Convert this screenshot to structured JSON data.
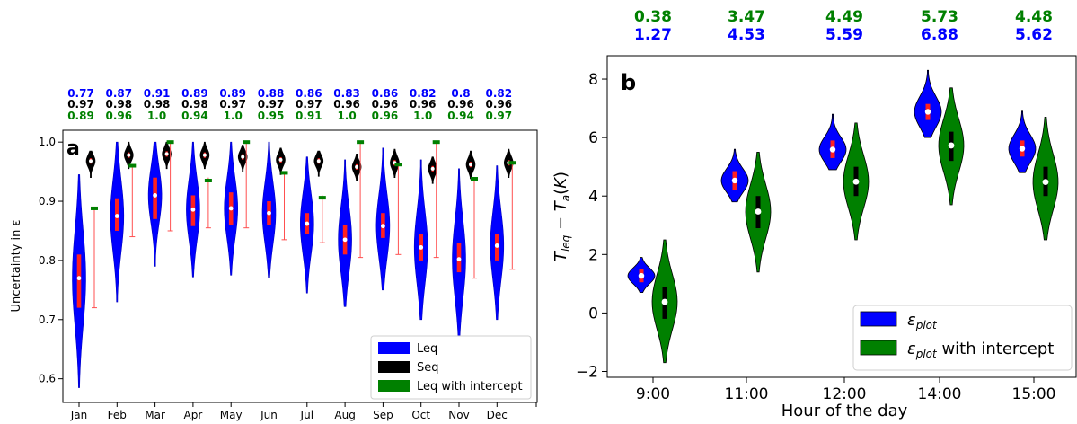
{
  "chart_data": [
    {
      "type": "violin",
      "panel_label": "a",
      "ylabel": "Uncertainty in ε",
      "ylim": [
        0.56,
        1.02
      ],
      "yticks": [
        "0.6",
        "0.7",
        "0.8",
        "0.9",
        "1.0"
      ],
      "categories": [
        "Jan",
        "Feb",
        "Mar",
        "Apr",
        "May",
        "Jun",
        "Jul",
        "Aug",
        "Sep",
        "Oct",
        "Nov",
        "Dec"
      ],
      "series": [
        {
          "name": "Leq",
          "color": "#0000ff",
          "medians": [
            0.77,
            0.875,
            0.91,
            0.886,
            0.888,
            0.88,
            0.862,
            0.835,
            0.858,
            0.822,
            0.802,
            0.825
          ],
          "q1": [
            0.72,
            0.85,
            0.87,
            0.858,
            0.86,
            0.86,
            0.845,
            0.81,
            0.838,
            0.8,
            0.78,
            0.8
          ],
          "q3": [
            0.81,
            0.905,
            0.94,
            0.91,
            0.915,
            0.9,
            0.88,
            0.86,
            0.88,
            0.845,
            0.83,
            0.845
          ],
          "min": [
            0.585,
            0.73,
            0.79,
            0.772,
            0.775,
            0.77,
            0.745,
            0.722,
            0.75,
            0.7,
            0.665,
            0.7
          ],
          "max": [
            0.945,
            1.0,
            1.0,
            1.0,
            1.0,
            1.0,
            0.975,
            0.97,
            0.99,
            0.97,
            0.955,
            0.96
          ]
        },
        {
          "name": "Seq",
          "color": "#000000",
          "medians": [
            0.968,
            0.978,
            0.98,
            0.978,
            0.975,
            0.97,
            0.968,
            0.958,
            0.965,
            0.955,
            0.962,
            0.965
          ],
          "min": [
            0.94,
            0.955,
            0.955,
            0.955,
            0.95,
            0.945,
            0.942,
            0.935,
            0.94,
            0.93,
            0.938,
            0.94
          ],
          "max": [
            0.985,
            1.0,
            1.0,
            1.0,
            0.995,
            0.99,
            0.985,
            0.98,
            0.988,
            0.975,
            0.985,
            0.988
          ]
        },
        {
          "name": "Leq with intercept",
          "color": "#008000",
          "medians": [
            0.888,
            0.96,
            1.0,
            0.935,
            1.0,
            0.948,
            0.906,
            1.0,
            0.962,
            1.0,
            0.938,
            0.965
          ],
          "min": [
            0.72,
            0.84,
            0.85,
            0.855,
            0.855,
            0.835,
            0.83,
            0.805,
            0.81,
            0.805,
            0.77,
            0.785
          ],
          "max": [
            0.89,
            0.962,
            1.0,
            0.94,
            1.0,
            0.95,
            0.91,
            1.0,
            0.965,
            1.0,
            0.94,
            0.967
          ]
        }
      ],
      "annotations": {
        "leq": [
          "0.77",
          "0.87",
          "0.91",
          "0.89",
          "0.89",
          "0.88",
          "0.86",
          "0.83",
          "0.86",
          "0.82",
          "0.8",
          "0.82"
        ],
        "seq": [
          "0.97",
          "0.98",
          "0.98",
          "0.98",
          "0.97",
          "0.97",
          "0.97",
          "0.96",
          "0.96",
          "0.96",
          "0.96",
          "0.96"
        ],
        "intercept": [
          "0.89",
          "0.96",
          "1.0",
          "0.94",
          "1.0",
          "0.95",
          "0.91",
          "1.0",
          "0.96",
          "1.0",
          "0.94",
          "0.97"
        ]
      },
      "legend": [
        "Leq",
        "Seq",
        "Leq with intercept"
      ],
      "legend_position": "lower-right"
    },
    {
      "type": "violin",
      "panel_label": "b",
      "ylabel": "T_leq − T_a (K)",
      "xlabel": "Hour of the day",
      "ylim": [
        -2.2,
        8.8
      ],
      "yticks": [
        "−2",
        "0",
        "2",
        "4",
        "6",
        "8"
      ],
      "categories": [
        "9:00",
        "11:00",
        "12:00",
        "14:00",
        "15:00"
      ],
      "series": [
        {
          "name": "ε_plot",
          "color": "#0000ff",
          "medians": [
            1.27,
            4.53,
            5.59,
            6.88,
            5.62
          ],
          "q1": [
            1.05,
            4.2,
            5.3,
            6.6,
            5.35
          ],
          "q3": [
            1.5,
            4.85,
            5.9,
            7.15,
            5.9
          ],
          "min": [
            0.7,
            3.8,
            4.9,
            6.0,
            4.8
          ],
          "max": [
            1.9,
            5.6,
            6.8,
            8.3,
            6.9
          ]
        },
        {
          "name": "ε_plot with intercept",
          "color": "#008000",
          "medians": [
            0.38,
            3.47,
            4.49,
            5.73,
            4.48
          ],
          "q1": [
            -0.2,
            2.9,
            4.0,
            5.2,
            4.0
          ],
          "q3": [
            0.9,
            4.0,
            5.0,
            6.2,
            5.0
          ],
          "min": [
            -1.7,
            1.4,
            2.5,
            3.7,
            2.5
          ],
          "max": [
            2.5,
            5.5,
            6.5,
            7.7,
            6.7
          ]
        }
      ],
      "annotations": {
        "intercept": [
          "0.38",
          "3.47",
          "4.49",
          "5.73",
          "4.48"
        ],
        "plot": [
          "1.27",
          "4.53",
          "5.59",
          "6.88",
          "5.62"
        ]
      },
      "legend": [
        "ε_plot",
        "ε_plot with intercept"
      ],
      "legend_position": "lower-right"
    }
  ]
}
